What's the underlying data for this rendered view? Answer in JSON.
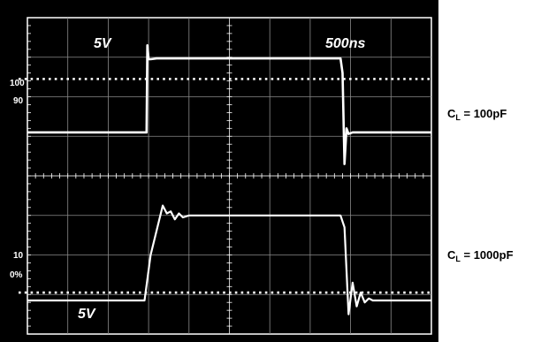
{
  "chart_data": {
    "type": "line",
    "title": "",
    "xlabel": "",
    "ylabel": "",
    "grid": true,
    "axes_labels": {
      "top_left_scale": "5V",
      "top_right_scale": "500ns",
      "bottom_left_scale": "5V",
      "level_100": "100",
      "level_90": "90",
      "level_10": "10",
      "level_0": "0%"
    },
    "x_divisions": 10,
    "y_divisions": 8,
    "series": [
      {
        "name": "C_L = 100pF",
        "label_main": "C",
        "label_sub": "L",
        "label_rest": " = 100pF",
        "x_div": [
          0,
          2.95,
          2.97,
          3.0,
          3.05,
          3.2,
          7.75,
          7.8,
          7.85,
          7.9,
          7.95,
          8.05,
          10
        ],
        "y_div": [
          1.1,
          1.1,
          3.3,
          2.95,
          2.95,
          2.97,
          2.97,
          2.6,
          0.3,
          1.2,
          1.06,
          1.1,
          1.1
        ]
      },
      {
        "name": "C_L = 1000pF",
        "label_main": "C",
        "label_sub": "L",
        "label_rest": " = 1000pF",
        "x_div": [
          0,
          2.9,
          3.05,
          3.35,
          3.45,
          3.55,
          3.65,
          3.75,
          3.85,
          4.0,
          7.75,
          7.85,
          7.95,
          8.05,
          8.15,
          8.25,
          8.35,
          8.45,
          8.55,
          10
        ],
        "y_div": [
          -3.15,
          -3.15,
          -2.0,
          -0.75,
          -0.95,
          -0.9,
          -1.1,
          -0.95,
          -1.05,
          -1.0,
          -1.0,
          -1.3,
          -3.5,
          -2.7,
          -3.3,
          -2.95,
          -3.2,
          -3.1,
          -3.15,
          -3.15
        ]
      }
    ],
    "dotted_levels_div": [
      2.45,
      -2.95
    ]
  }
}
